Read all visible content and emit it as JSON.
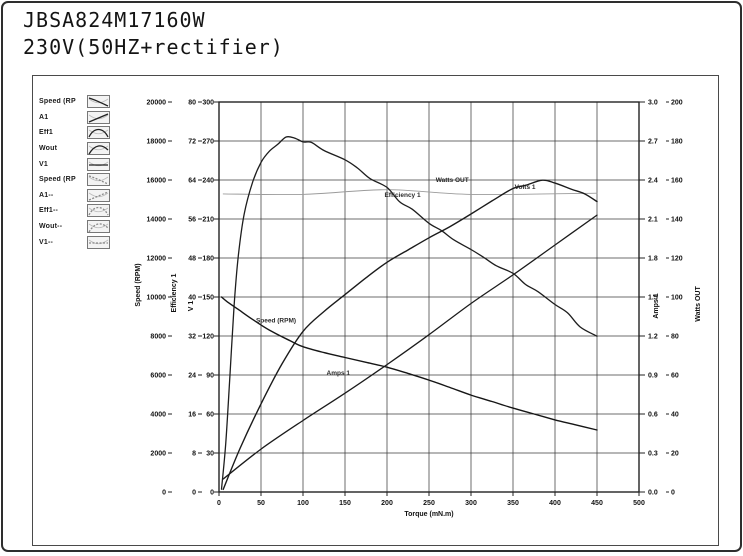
{
  "title": {
    "model": "JBSA824M17160W",
    "supply": "230V(50HZ+rectifier)"
  },
  "legend": {
    "items": [
      {
        "label": "Speed (RP",
        "shape": "speed",
        "variant": "solid"
      },
      {
        "label": "A1",
        "shape": "amps",
        "variant": "solid"
      },
      {
        "label": "Eff1",
        "shape": "eff",
        "variant": "solid"
      },
      {
        "label": "Wout",
        "shape": "wout",
        "variant": "solid"
      },
      {
        "label": "V1",
        "shape": "v",
        "variant": "solid"
      },
      {
        "label": "Speed (RP",
        "shape": "speed",
        "variant": "dashed"
      },
      {
        "label": "A1--",
        "shape": "amps",
        "variant": "dashed"
      },
      {
        "label": "Eff1--",
        "shape": "eff",
        "variant": "dashed"
      },
      {
        "label": "Wout--",
        "shape": "wout",
        "variant": "dashed"
      },
      {
        "label": "V1--",
        "shape": "v",
        "variant": "dashed"
      }
    ]
  },
  "chart_data": {
    "type": "line",
    "xlabel": "Torque (mN.m)",
    "x_range": [
      0,
      500
    ],
    "x_tick_labels": [
      "0",
      "50",
      "100",
      "150",
      "200",
      "250",
      "300",
      "350",
      "400",
      "450",
      "500"
    ],
    "grid": true,
    "axes": [
      {
        "id": "speed",
        "side": "left",
        "col": 0,
        "title": "Speed (RPM)",
        "range": [
          0,
          20000
        ],
        "tick_labels_top_down": [
          "20000",
          "18000",
          "16000",
          "14000",
          "12000",
          "10000",
          "8000",
          "6000",
          "4000",
          "2000",
          "0"
        ]
      },
      {
        "id": "eff",
        "side": "left",
        "col": 1,
        "title": "Efficiency 1",
        "range": [
          0,
          80
        ],
        "tick_labels_top_down": [
          "80",
          "72",
          "64",
          "56",
          "48",
          "40",
          "32",
          "24",
          "16",
          "8",
          "0"
        ]
      },
      {
        "id": "volts",
        "side": "left",
        "col": 2,
        "title": "V 1",
        "range": [
          0,
          300
        ],
        "tick_labels_top_down": [
          "300",
          "270",
          "240",
          "210",
          "180",
          "150",
          "120",
          "90",
          "60",
          "30",
          "0"
        ]
      },
      {
        "id": "amps",
        "side": "right",
        "col": 0,
        "title": "Amps 1",
        "range": [
          0,
          3
        ],
        "tick_labels_top_down": [
          "3.0",
          "2.7",
          "2.4",
          "2.1",
          "1.8",
          "1.5",
          "1.2",
          "0.9",
          "0.6",
          "0.3",
          "0.0"
        ]
      },
      {
        "id": "watts",
        "side": "right",
        "col": 1,
        "title": "Watts OUT",
        "range": [
          0,
          200
        ],
        "tick_labels_top_down": [
          "200",
          "180",
          "160",
          "140",
          "120",
          "100",
          "80",
          "60",
          "40",
          "20",
          "0"
        ]
      }
    ],
    "series": [
      {
        "name": "Volts 1",
        "axis": "volts",
        "color": "#9b9b9b",
        "width": 0.9,
        "noise": 1.5,
        "label": "Volts 1",
        "label_at": [
          352,
          233
        ],
        "points": [
          [
            5,
            231
          ],
          [
            100,
            230.5
          ],
          [
            200,
            230.5
          ],
          [
            300,
            230
          ],
          [
            450,
            230
          ]
        ]
      },
      {
        "name": "Watts OUT",
        "axis": "watts",
        "color": "#1b1b1b",
        "width": 1.4,
        "noise": 0.6,
        "label": "Watts OUT",
        "label_at": [
          258,
          159
        ],
        "points": [
          [
            5,
            2
          ],
          [
            25,
            22
          ],
          [
            50,
            45
          ],
          [
            75,
            66
          ],
          [
            100,
            83
          ],
          [
            125,
            93
          ],
          [
            150,
            101
          ],
          [
            175,
            109
          ],
          [
            200,
            117
          ],
          [
            225,
            124
          ],
          [
            250,
            131
          ],
          [
            275,
            137
          ],
          [
            300,
            143
          ],
          [
            325,
            149
          ],
          [
            350,
            155
          ],
          [
            365,
            157.5
          ],
          [
            385,
            159.5
          ],
          [
            400,
            158.5
          ],
          [
            420,
            155.5
          ],
          [
            435,
            152.5
          ],
          [
            450,
            149
          ]
        ]
      },
      {
        "name": "Amps 1",
        "axis": "amps",
        "color": "#1b1b1b",
        "width": 1.3,
        "noise": 0,
        "label": "Amps 1",
        "label_at": [
          128,
          0.9
        ],
        "points": [
          [
            5,
            0.1
          ],
          [
            50,
            0.33
          ],
          [
            100,
            0.55
          ],
          [
            150,
            0.76
          ],
          [
            200,
            0.98
          ],
          [
            250,
            1.21
          ],
          [
            300,
            1.45
          ],
          [
            350,
            1.67
          ],
          [
            400,
            1.9
          ],
          [
            450,
            2.13
          ]
        ]
      },
      {
        "name": "Speed (RPM)",
        "axis": "speed",
        "color": "#161616",
        "width": 1.4,
        "noise": 0,
        "label": "Speed (RPM)",
        "label_at": [
          44,
          8700
        ],
        "points": [
          [
            3,
            10000
          ],
          [
            10,
            9750
          ],
          [
            25,
            9300
          ],
          [
            40,
            8850
          ],
          [
            60,
            8300
          ],
          [
            85,
            7750
          ],
          [
            100,
            7450
          ],
          [
            125,
            7150
          ],
          [
            150,
            6900
          ],
          [
            175,
            6650
          ],
          [
            200,
            6400
          ],
          [
            225,
            6080
          ],
          [
            250,
            5740
          ],
          [
            275,
            5360
          ],
          [
            300,
            4970
          ],
          [
            325,
            4640
          ],
          [
            350,
            4300
          ],
          [
            375,
            4000
          ],
          [
            400,
            3700
          ],
          [
            425,
            3440
          ],
          [
            450,
            3180
          ]
        ]
      },
      {
        "name": "Efficiency 1",
        "axis": "eff",
        "color": "#1e1e1e",
        "width": 1.3,
        "noise": 0.35,
        "label": "Efficiency 1",
        "label_at": [
          197,
          60.5
        ],
        "points": [
          [
            3,
            1
          ],
          [
            8,
            10
          ],
          [
            13,
            24
          ],
          [
            18,
            38
          ],
          [
            23,
            48
          ],
          [
            30,
            57
          ],
          [
            40,
            64
          ],
          [
            50,
            67.5
          ],
          [
            60,
            70
          ],
          [
            70,
            71.5
          ],
          [
            80,
            72.3
          ],
          [
            90,
            72.5
          ],
          [
            100,
            72.2
          ],
          [
            110,
            71.6
          ],
          [
            125,
            70.3
          ],
          [
            150,
            68
          ],
          [
            165,
            66.3
          ],
          [
            180,
            64.5
          ],
          [
            200,
            62
          ],
          [
            215,
            60
          ],
          [
            230,
            57.8
          ],
          [
            250,
            55.5
          ],
          [
            265,
            53.5
          ],
          [
            280,
            51.8
          ],
          [
            300,
            50
          ],
          [
            315,
            48
          ],
          [
            330,
            46.3
          ],
          [
            350,
            44.5
          ],
          [
            365,
            42.7
          ],
          [
            380,
            40.8
          ],
          [
            400,
            38.5
          ],
          [
            415,
            36.5
          ],
          [
            430,
            34.3
          ],
          [
            450,
            32
          ]
        ]
      }
    ]
  },
  "colors": {
    "grid": "#3d3d3d",
    "curve_dark": "#1b1b1b",
    "curve_light": "#9b9b9b",
    "text": "#111111"
  }
}
